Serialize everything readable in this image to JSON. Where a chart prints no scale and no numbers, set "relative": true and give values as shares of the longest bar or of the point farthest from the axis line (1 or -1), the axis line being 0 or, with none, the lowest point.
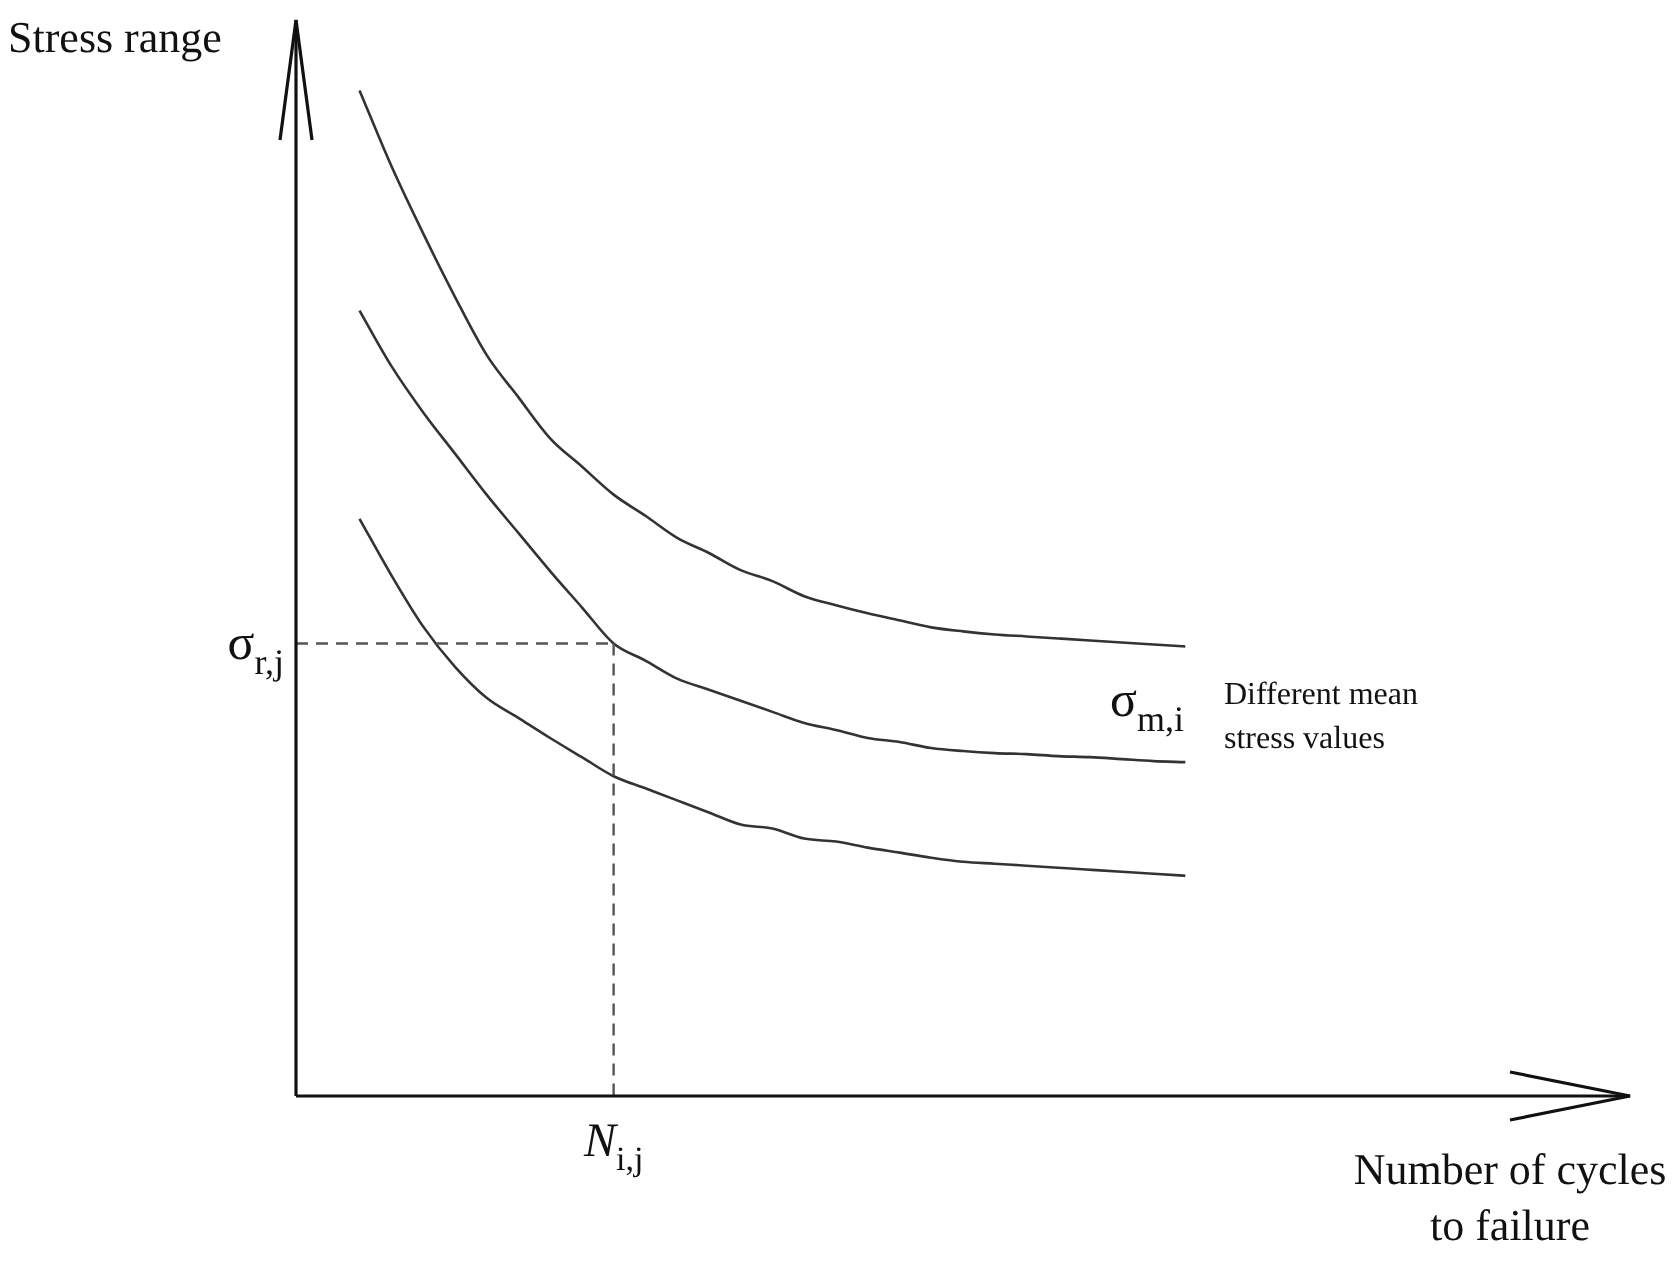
{
  "chart_data": {
    "type": "line",
    "relative": true,
    "ylabel": "Stress range",
    "xlabel": "Number of cycles to failure",
    "marker": "none",
    "categories": [
      null,
      null,
      null,
      null,
      null,
      null,
      null,
      null,
      null,
      null,
      null,
      null,
      null,
      null,
      null,
      null,
      null,
      null,
      null,
      null,
      null,
      null,
      null,
      null,
      null,
      null,
      null,
      null,
      null,
      null,
      null,
      null,
      null,
      null,
      null,
      null,
      null,
      null,
      null,
      null,
      null,
      null,
      null
    ],
    "series": [
      {
        "color": "#333333",
        "values": [
          null,
          null,
          1.0,
          0.925,
          0.858,
          0.795,
          0.737,
          0.695,
          0.654,
          0.626,
          0.598,
          0.577,
          0.555,
          0.54,
          0.523,
          0.512,
          0.497,
          0.488,
          0.48,
          0.473,
          0.466,
          0.462,
          0.459,
          0.457,
          0.455,
          0.453,
          0.451,
          0.449,
          0.447,
          null,
          null,
          null,
          null,
          null,
          null,
          null,
          null,
          null,
          null,
          null,
          null,
          null,
          null
        ]
      },
      {
        "color": "#333333",
        "values": [
          null,
          null,
          0.781,
          0.726,
          0.68,
          0.639,
          0.598,
          0.56,
          0.522,
          0.486,
          0.45,
          0.433,
          0.415,
          0.404,
          0.393,
          0.382,
          0.371,
          0.364,
          0.356,
          0.352,
          0.346,
          0.343,
          0.341,
          0.34,
          0.338,
          0.337,
          0.335,
          0.333,
          0.332,
          null,
          null,
          null,
          null,
          null,
          null,
          null,
          null,
          null,
          null,
          null,
          null,
          null,
          null
        ]
      },
      {
        "color": "#333333",
        "values": [
          null,
          null,
          0.574,
          0.518,
          0.467,
          0.427,
          0.396,
          0.376,
          0.356,
          0.337,
          0.318,
          0.306,
          0.294,
          0.282,
          0.27,
          0.266,
          0.256,
          0.253,
          0.247,
          0.242,
          0.237,
          0.233,
          0.231,
          0.229,
          0.227,
          0.225,
          0.223,
          0.221,
          0.219,
          null,
          null,
          null,
          null,
          null,
          null,
          null,
          null,
          null,
          null,
          null,
          null,
          null,
          null
        ]
      }
    ],
    "ref_lines": [
      {
        "axis": "y",
        "value": 0.45,
        "label": "σ$_{r,j}$",
        "line_style": "dashed",
        "color": "#555555"
      }
    ],
    "annotations": [
      "σ$_{m,i}$",
      "Different mean stress values",
      "N$_{i,j}$"
    ]
  }
}
